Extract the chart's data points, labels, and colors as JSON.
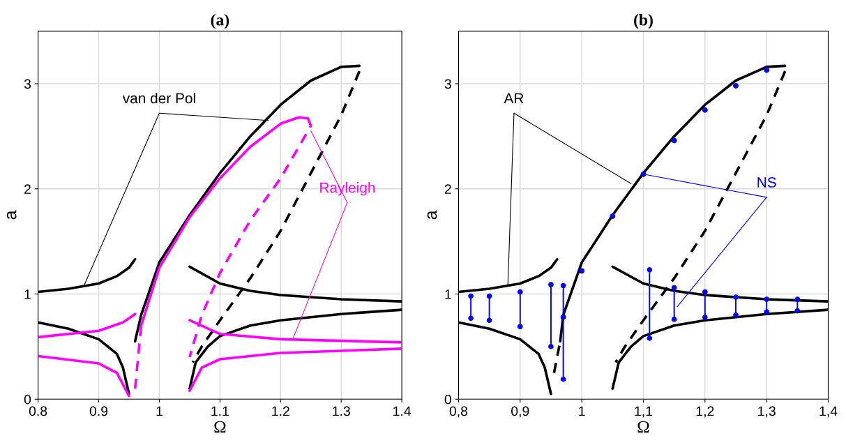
{
  "chart_data": [
    {
      "type": "line",
      "title": "(a)",
      "xlabel": "Ω",
      "ylabel": "a",
      "xlim": [
        0.8,
        1.4
      ],
      "ylim": [
        0,
        3.5
      ],
      "xticks": [
        0.8,
        0.9,
        1,
        1.1,
        1.2,
        1.3,
        1.4
      ],
      "yticks": [
        0,
        1,
        2,
        3
      ],
      "grid": true,
      "legend": false,
      "series": [
        {
          "color": "#000000",
          "line_style": "solid",
          "x": [
            0.8,
            0.85,
            0.9,
            0.93,
            0.95,
            0.96
          ],
          "values": [
            1.02,
            1.05,
            1.1,
            1.17,
            1.25,
            1.33
          ]
        },
        {
          "color": "#000000",
          "line_style": "solid",
          "x": [
            0.8,
            0.85,
            0.9,
            0.93,
            0.94,
            0.95
          ],
          "values": [
            0.73,
            0.67,
            0.57,
            0.43,
            0.3,
            0.05
          ]
        },
        {
          "color": "#000000",
          "line_style": "solid",
          "x": [
            0.96,
            0.97,
            1.0,
            1.05,
            1.1,
            1.15,
            1.2,
            1.25,
            1.3,
            1.33
          ],
          "values": [
            0.55,
            0.8,
            1.3,
            1.75,
            2.15,
            2.5,
            2.8,
            3.03,
            3.16,
            3.17
          ]
        },
        {
          "color": "#000000",
          "line_style": "dashed",
          "x": [
            1.33,
            1.3,
            1.25,
            1.2,
            1.15,
            1.1,
            1.07,
            1.055
          ],
          "values": [
            3.12,
            2.7,
            2.15,
            1.6,
            1.15,
            0.75,
            0.5,
            0.35
          ]
        },
        {
          "color": "#000000",
          "line_style": "solid",
          "x": [
            1.05,
            1.1,
            1.15,
            1.2,
            1.3,
            1.4
          ],
          "values": [
            1.26,
            1.1,
            1.03,
            0.99,
            0.95,
            0.93
          ]
        },
        {
          "color": "#000000",
          "line_style": "solid",
          "x": [
            1.05,
            1.06,
            1.08,
            1.1,
            1.15,
            1.2,
            1.3,
            1.4
          ],
          "values": [
            0.1,
            0.35,
            0.5,
            0.6,
            0.7,
            0.75,
            0.81,
            0.85
          ]
        },
        {
          "color": "#ff00ff",
          "line_style": "solid",
          "x": [
            0.8,
            0.9,
            0.94,
            0.96
          ],
          "values": [
            0.59,
            0.65,
            0.73,
            0.81
          ]
        },
        {
          "color": "#ff00ff",
          "line_style": "solid",
          "x": [
            0.8,
            0.9,
            0.93,
            0.95
          ],
          "values": [
            0.41,
            0.34,
            0.25,
            0.03
          ]
        },
        {
          "color": "#ff00ff",
          "line_style": "dashed",
          "x": [
            0.96,
            0.965,
            0.97
          ],
          "values": [
            0.1,
            0.4,
            0.7
          ]
        },
        {
          "color": "#ff00ff",
          "line_style": "solid",
          "x": [
            0.97,
            1.0,
            1.05,
            1.1,
            1.15,
            1.2,
            1.23,
            1.245
          ],
          "values": [
            0.7,
            1.25,
            1.73,
            2.1,
            2.4,
            2.62,
            2.68,
            2.67
          ]
        },
        {
          "color": "#ff00ff",
          "line_style": "dashed",
          "x": [
            1.245,
            1.25,
            1.2,
            1.15,
            1.1,
            1.07,
            1.05
          ],
          "values": [
            2.67,
            2.6,
            2.1,
            1.7,
            1.2,
            0.8,
            0.4
          ]
        },
        {
          "color": "#ff00ff",
          "line_style": "solid",
          "x": [
            1.05,
            1.1,
            1.2,
            1.4
          ],
          "values": [
            0.75,
            0.62,
            0.57,
            0.54
          ]
        },
        {
          "color": "#ff00ff",
          "line_style": "solid",
          "x": [
            1.05,
            1.07,
            1.1,
            1.2,
            1.4
          ],
          "values": [
            0.08,
            0.3,
            0.38,
            0.44,
            0.48
          ]
        }
      ],
      "annotations": [
        {
          "text": "van der Pol",
          "x": 0.875,
          "y": 1.07
        },
        {
          "text": "Rayleigh",
          "x": 1.22,
          "y": 0.57
        }
      ]
    },
    {
      "type": "line",
      "title": "(b)",
      "xlabel": "Ω",
      "ylabel": "a",
      "xlim": [
        0.8,
        1.4
      ],
      "ylim": [
        0,
        3.5
      ],
      "xticks": [
        {
          "value": 0.8,
          "label": "0,8"
        },
        {
          "value": 0.9,
          "label": "0,9"
        },
        1,
        {
          "value": 1.1,
          "label": "1,1"
        },
        {
          "value": 1.2,
          "label": "1,2"
        },
        {
          "value": 1.3,
          "label": "1,3"
        },
        {
          "value": 1.4,
          "label": "1,4"
        }
      ],
      "yticks": [
        0,
        1,
        2,
        3
      ],
      "grid": true,
      "legend": false,
      "series": [
        {
          "color": "#000000",
          "line_style": "solid",
          "x": [
            0.8,
            0.85,
            0.9,
            0.93,
            0.95,
            0.96
          ],
          "values": [
            1.02,
            1.05,
            1.1,
            1.17,
            1.25,
            1.33
          ]
        },
        {
          "color": "#000000",
          "line_style": "solid",
          "x": [
            0.8,
            0.85,
            0.9,
            0.93,
            0.94,
            0.95
          ],
          "values": [
            0.73,
            0.67,
            0.57,
            0.43,
            0.3,
            0.05
          ]
        },
        {
          "color": "#000000",
          "line_style": "dashed",
          "x": [
            0.955,
            0.96,
            0.965
          ],
          "values": [
            0.25,
            0.4,
            0.55
          ]
        },
        {
          "color": "#000000",
          "line_style": "solid",
          "x": [
            0.965,
            0.97,
            1.0,
            1.05,
            1.1,
            1.15,
            1.2,
            1.25,
            1.3,
            1.33
          ],
          "values": [
            0.55,
            0.8,
            1.3,
            1.75,
            2.15,
            2.5,
            2.8,
            3.03,
            3.16,
            3.17
          ]
        },
        {
          "color": "#000000",
          "line_style": "dashed",
          "x": [
            1.33,
            1.3,
            1.25,
            1.2,
            1.15,
            1.1,
            1.07,
            1.055
          ],
          "values": [
            3.12,
            2.7,
            2.15,
            1.6,
            1.15,
            0.75,
            0.5,
            0.35
          ]
        },
        {
          "color": "#000000",
          "line_style": "solid",
          "x": [
            1.05,
            1.1,
            1.15,
            1.2,
            1.3,
            1.4
          ],
          "values": [
            1.26,
            1.1,
            1.03,
            0.99,
            0.95,
            0.93
          ]
        },
        {
          "color": "#000000",
          "line_style": "solid",
          "x": [
            1.05,
            1.06,
            1.08,
            1.1,
            1.15,
            1.2,
            1.3,
            1.4
          ],
          "values": [
            0.1,
            0.35,
            0.5,
            0.6,
            0.7,
            0.75,
            0.81,
            0.85
          ]
        },
        {
          "type": "scatter",
          "marker": "circle",
          "color": "#0000ff",
          "x": [
            0.97,
            1.0,
            1.05,
            1.1,
            1.15,
            1.2,
            1.25,
            1.3
          ],
          "values": [
            0.78,
            1.22,
            1.74,
            2.14,
            2.46,
            2.75,
            2.98,
            3.13
          ]
        },
        {
          "color": "#0000ff",
          "line_style": "solid",
          "marker": "circle",
          "x": [
            0.82,
            0.82
          ],
          "values": [
            0.77,
            0.98
          ]
        },
        {
          "color": "#0000ff",
          "line_style": "solid",
          "marker": "circle",
          "x": [
            0.85,
            0.85
          ],
          "values": [
            0.75,
            0.98
          ]
        },
        {
          "color": "#0000ff",
          "line_style": "solid",
          "marker": "circle",
          "x": [
            0.9,
            0.9
          ],
          "values": [
            0.69,
            1.02
          ]
        },
        {
          "color": "#0000ff",
          "line_style": "solid",
          "marker": "circle",
          "x": [
            0.95,
            0.95
          ],
          "values": [
            0.5,
            1.09
          ]
        },
        {
          "color": "#0000ff",
          "line_style": "solid",
          "marker": "circle",
          "x": [
            0.97,
            0.97
          ],
          "values": [
            0.19,
            1.08
          ]
        },
        {
          "color": "#0000ff",
          "line_style": "solid",
          "marker": "circle",
          "x": [
            1.11,
            1.11
          ],
          "values": [
            0.58,
            1.23
          ]
        },
        {
          "color": "#0000ff",
          "line_style": "solid",
          "marker": "circle",
          "x": [
            1.15,
            1.15
          ],
          "values": [
            0.76,
            1.06
          ]
        },
        {
          "color": "#0000ff",
          "line_style": "solid",
          "marker": "circle",
          "x": [
            1.2,
            1.2
          ],
          "values": [
            0.78,
            1.02
          ]
        },
        {
          "color": "#0000ff",
          "line_style": "solid",
          "marker": "circle",
          "x": [
            1.25,
            1.25
          ],
          "values": [
            0.8,
            0.97
          ]
        },
        {
          "color": "#0000ff",
          "line_style": "solid",
          "marker": "circle",
          "x": [
            1.3,
            1.3
          ],
          "values": [
            0.83,
            0.95
          ]
        },
        {
          "color": "#0000ff",
          "line_style": "solid",
          "marker": "circle",
          "x": [
            1.35,
            1.35
          ],
          "values": [
            0.84,
            0.95
          ]
        }
      ],
      "annotations": [
        {
          "text": "AR",
          "x": 1.08,
          "y": 2.05
        },
        {
          "text": "NS",
          "x": 1.1,
          "y": 2.14
        }
      ]
    }
  ]
}
